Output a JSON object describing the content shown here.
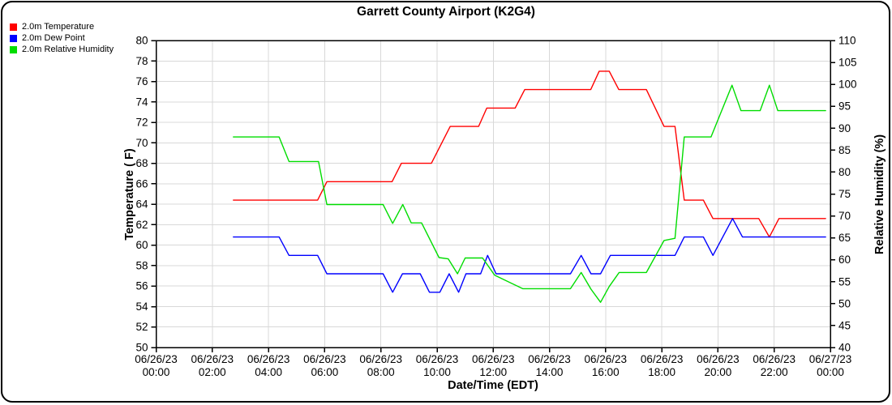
{
  "chart_data": {
    "type": "line",
    "title": "Garrett County Airport (K2G4)",
    "xlabel": "Date/Time (EDT)",
    "ylabel_left": "Temperature ( F)",
    "ylabel_right": "Relative Humidity (%)",
    "grid": true,
    "legend_position": "top-left",
    "x_axis": {
      "start_hour": 0,
      "end_hour": 24,
      "tick_step_hours": 2,
      "ticks": [
        {
          "date": "06/26/23",
          "time": "00:00"
        },
        {
          "date": "06/26/23",
          "time": "02:00"
        },
        {
          "date": "06/26/23",
          "time": "04:00"
        },
        {
          "date": "06/26/23",
          "time": "06:00"
        },
        {
          "date": "06/26/23",
          "time": "08:00"
        },
        {
          "date": "06/26/23",
          "time": "10:00"
        },
        {
          "date": "06/26/23",
          "time": "12:00"
        },
        {
          "date": "06/26/23",
          "time": "14:00"
        },
        {
          "date": "06/26/23",
          "time": "16:00"
        },
        {
          "date": "06/26/23",
          "time": "18:00"
        },
        {
          "date": "06/26/23",
          "time": "20:00"
        },
        {
          "date": "06/26/23",
          "time": "22:00"
        },
        {
          "date": "06/27/23",
          "time": "00:00"
        }
      ]
    },
    "y_left": {
      "min": 50,
      "max": 80,
      "step": 2
    },
    "y_right": {
      "min": 40,
      "max": 110,
      "step": 5
    },
    "colors": {
      "grid": "#d8d8d8",
      "axis": "#000000"
    },
    "series": [
      {
        "name": "2.0m Temperature",
        "color": "#ff0000",
        "axis": "left",
        "points": [
          [
            2.75,
            64.4
          ],
          [
            5.75,
            64.4
          ],
          [
            6.08,
            66.2
          ],
          [
            8.4,
            66.2
          ],
          [
            8.73,
            68.0
          ],
          [
            9.8,
            68.0
          ],
          [
            10.47,
            71.6
          ],
          [
            11.48,
            71.6
          ],
          [
            11.77,
            73.4
          ],
          [
            12.78,
            73.4
          ],
          [
            13.12,
            75.2
          ],
          [
            15.47,
            75.2
          ],
          [
            15.77,
            77.0
          ],
          [
            16.13,
            77.0
          ],
          [
            16.47,
            75.2
          ],
          [
            17.45,
            75.2
          ],
          [
            18.08,
            71.6
          ],
          [
            18.47,
            71.6
          ],
          [
            18.8,
            64.4
          ],
          [
            19.48,
            64.4
          ],
          [
            19.82,
            62.6
          ],
          [
            21.45,
            62.6
          ],
          [
            21.83,
            60.8
          ],
          [
            22.17,
            62.6
          ],
          [
            23.83,
            62.6
          ]
        ]
      },
      {
        "name": "2.0m Dew Point",
        "color": "#0000ff",
        "axis": "left",
        "points": [
          [
            2.75,
            60.8
          ],
          [
            4.38,
            60.8
          ],
          [
            4.73,
            59.0
          ],
          [
            5.75,
            59.0
          ],
          [
            6.08,
            57.2
          ],
          [
            8.08,
            57.2
          ],
          [
            8.42,
            55.4
          ],
          [
            8.77,
            57.2
          ],
          [
            9.4,
            57.2
          ],
          [
            9.73,
            55.4
          ],
          [
            10.1,
            55.4
          ],
          [
            10.43,
            57.2
          ],
          [
            10.77,
            55.4
          ],
          [
            11.03,
            57.2
          ],
          [
            11.55,
            57.2
          ],
          [
            11.8,
            59.0
          ],
          [
            12.1,
            57.2
          ],
          [
            14.75,
            57.2
          ],
          [
            15.13,
            59.0
          ],
          [
            15.48,
            57.2
          ],
          [
            15.82,
            57.2
          ],
          [
            16.17,
            59.0
          ],
          [
            18.47,
            59.0
          ],
          [
            18.8,
            60.8
          ],
          [
            19.48,
            60.8
          ],
          [
            19.82,
            59.0
          ],
          [
            20.17,
            60.8
          ],
          [
            20.52,
            62.6
          ],
          [
            20.87,
            60.8
          ],
          [
            23.83,
            60.8
          ]
        ]
      },
      {
        "name": "2.0m Relative Humidity",
        "color": "#00dd00",
        "axis": "right",
        "points": [
          [
            2.75,
            88.0
          ],
          [
            4.38,
            88.0
          ],
          [
            4.73,
            82.4
          ],
          [
            5.78,
            82.4
          ],
          [
            6.08,
            72.6
          ],
          [
            8.08,
            72.6
          ],
          [
            8.42,
            68.3
          ],
          [
            8.78,
            72.6
          ],
          [
            9.08,
            68.4
          ],
          [
            9.45,
            68.4
          ],
          [
            10.07,
            60.5
          ],
          [
            10.4,
            60.2
          ],
          [
            10.73,
            56.8
          ],
          [
            11.0,
            60.4
          ],
          [
            11.62,
            60.4
          ],
          [
            12.05,
            56.5
          ],
          [
            13.05,
            53.4
          ],
          [
            14.75,
            53.4
          ],
          [
            15.13,
            57.1
          ],
          [
            15.48,
            53.3
          ],
          [
            15.82,
            50.3
          ],
          [
            16.13,
            53.9
          ],
          [
            16.48,
            57.1
          ],
          [
            17.45,
            57.1
          ],
          [
            18.08,
            64.4
          ],
          [
            18.47,
            64.9
          ],
          [
            18.8,
            88.0
          ],
          [
            19.75,
            88.0
          ],
          [
            20.5,
            99.8
          ],
          [
            20.82,
            94.0
          ],
          [
            21.5,
            94.0
          ],
          [
            21.83,
            99.8
          ],
          [
            22.13,
            94.0
          ],
          [
            23.83,
            94.0
          ]
        ]
      }
    ]
  }
}
